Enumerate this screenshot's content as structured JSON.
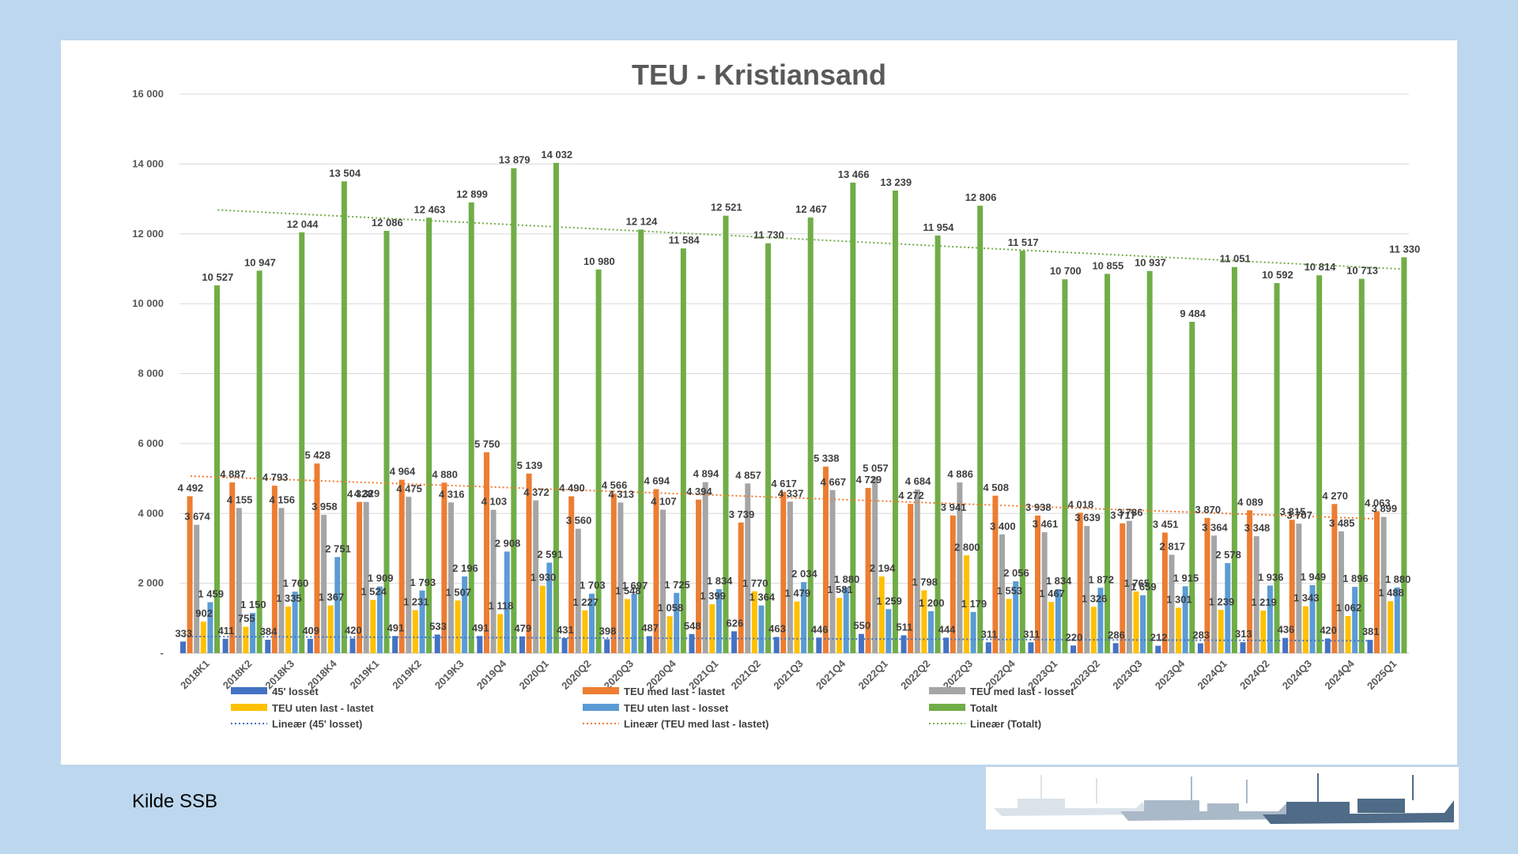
{
  "source_text": "Kilde SSB",
  "chart_data": {
    "type": "bar",
    "title": "TEU - Kristiansand",
    "ylim": [
      0,
      16000
    ],
    "yticks": [
      "-",
      "2 000",
      "4 000",
      "6 000",
      "8 000",
      "10 000",
      "12 000",
      "14 000",
      "16 000"
    ],
    "grid": true,
    "legend_position": "bottom",
    "categories": [
      "2018K1",
      "2018K2",
      "2018K3",
      "2018K4",
      "2019K1",
      "2019K2",
      "2019K3",
      "2019Q4",
      "2020Q1",
      "2020Q2",
      "2020Q3",
      "2020Q4",
      "2021Q1",
      "2021Q2",
      "2021Q3",
      "2021Q4",
      "2022Q1",
      "2022Q2",
      "2022Q3",
      "2022Q4",
      "2023Q1",
      "2023Q2",
      "2023Q3",
      "2023Q4",
      "2024Q1",
      "2024Q2",
      "2024Q3",
      "2024Q4",
      "2025Q1"
    ],
    "series": [
      {
        "name": "45' losset",
        "color": "#4472c4",
        "values": [
          333,
          411,
          384,
          409,
          420,
          491,
          533,
          491,
          479,
          431,
          398,
          487,
          548,
          626,
          463,
          446,
          550,
          511,
          444,
          311,
          311,
          220,
          286,
          212,
          283,
          313,
          436,
          420,
          381
        ]
      },
      {
        "name": "TEU med last - lastet",
        "color": "#ed7d31",
        "values": [
          4492,
          4887,
          4793,
          5428,
          4328,
          4964,
          4880,
          5750,
          5139,
          4490,
          4566,
          4694,
          4394,
          3739,
          4617,
          5338,
          4729,
          4272,
          3941,
          4508,
          3938,
          4018,
          3717,
          3451,
          3870,
          4089,
          3815,
          4270,
          4063
        ]
      },
      {
        "name": "TEU med last - losset",
        "color": "#a5a5a5",
        "values": [
          3674,
          4155,
          4156,
          3958,
          4329,
          4475,
          4316,
          4103,
          4372,
          3560,
          4313,
          4107,
          4894,
          4857,
          4337,
          4667,
          5057,
          4684,
          4886,
          3400,
          3461,
          3639,
          3786,
          2817,
          3364,
          3348,
          3707,
          3485,
          3899
        ]
      },
      {
        "name": "TEU uten last - lastet",
        "color": "#ffc000",
        "values": [
          902,
          755,
          1335,
          1367,
          1524,
          1231,
          1507,
          1118,
          1930,
          1227,
          1548,
          1058,
          1399,
          1770,
          1479,
          1581,
          2194,
          1798,
          2800,
          1553,
          1467,
          1326,
          1765,
          1301,
          1239,
          1219,
          1343,
          1062,
          1488
        ]
      },
      {
        "name": "TEU uten last - losset",
        "color": "#5b9bd5",
        "values": [
          1459,
          1150,
          1760,
          2751,
          1909,
          1793,
          2196,
          2908,
          2591,
          1703,
          1697,
          1725,
          1834,
          1364,
          2034,
          1880,
          1259,
          1200,
          1179,
          2056,
          1834,
          1872,
          1659,
          1915,
          2578,
          1936,
          1949,
          1896,
          1880
        ]
      },
      {
        "name": "Totalt",
        "color": "#70ad47",
        "values": [
          10527,
          10947,
          12044,
          13504,
          12086,
          12463,
          12899,
          13879,
          14032,
          10980,
          12124,
          11584,
          12521,
          11730,
          12467,
          13466,
          13239,
          11954,
          12806,
          11517,
          10700,
          10855,
          10937,
          9484,
          11051,
          10592,
          10814,
          10713,
          11330
        ]
      }
    ],
    "data_labels": [
      {
        "series": "45' losset",
        "labels": [
          "333",
          "411",
          "384",
          "409",
          "420",
          "491",
          "533",
          "491",
          "479",
          "431",
          "398",
          "487",
          "548",
          "626",
          "463",
          "446",
          "550",
          "511",
          "444",
          "311",
          "311",
          "220",
          "286",
          "212",
          "283",
          "313",
          "436",
          "420",
          "381"
        ]
      },
      {
        "series": "TEU med last - lastet",
        "labels": [
          "4 492",
          "4 887",
          "4 793",
          "5 428",
          "4 328",
          "4 964",
          "4 880",
          "5 750",
          "5 139",
          "4 490",
          "4 566",
          "4 694",
          "4 394",
          "3 739",
          "4 617",
          "5 338",
          "4 729",
          "4 272",
          "3 941",
          "4 508",
          "3 938",
          "4 018",
          "3 717",
          "3 451",
          "3 870",
          "4 089",
          "3 815",
          "4 270",
          "4 063"
        ]
      },
      {
        "series": "TEU med last - losset",
        "labels": [
          "3 674",
          "4 155",
          "4 156",
          "3 958",
          "4 329",
          "4 475",
          "4 316",
          "4 103",
          "4 372",
          "3 560",
          "4 313",
          "4 107",
          "4 894",
          "4 857",
          "4 337",
          "4 667",
          "5 057",
          "4 684",
          "4 886",
          "3 400",
          "3 461",
          "3 639",
          "3 786",
          "2 817",
          "3 364",
          "3 348",
          "3 707",
          "3 485",
          "3 899"
        ]
      },
      {
        "series": "TEU uten last - lastet",
        "labels": [
          "902",
          "755",
          "1 335",
          "1 367",
          "1 524",
          "1 231",
          "1 507",
          "1 118",
          "1 930",
          "1 227",
          "1 548",
          "1 058",
          "1 399",
          "1 770",
          "1 479",
          "1 581",
          "2 194",
          "1 798",
          "2 800",
          "1 553",
          "1 467",
          "1 326",
          "1 765",
          "1 301",
          "1 239",
          "1 219",
          "1 343",
          "1 062",
          "1 488"
        ]
      },
      {
        "series": "TEU uten last - losset",
        "labels": [
          "1 459",
          "1 150",
          "1 760",
          "2 751",
          "1 909",
          "1 793",
          "2 196",
          "2 908",
          "2 591",
          "1 703",
          "1 697",
          "1 725",
          "1 834",
          "1 364",
          "2 034",
          "1 880",
          "1 259",
          "1 200",
          "1 179",
          "2 056",
          "1 834",
          "1 872",
          "1 659",
          "1 915",
          "2 578",
          "1 936",
          "1 949",
          "1 896",
          "1 880"
        ]
      },
      {
        "series": "Totalt",
        "labels": [
          "10 527",
          "10 947",
          "12 044",
          "13 504",
          "12 086",
          "12 463",
          "12 899",
          "13 879",
          "14 032",
          "10 980",
          "12 124",
          "11 584",
          "12 521",
          "11 730",
          "12 467",
          "13 466",
          "13 239",
          "11 954",
          "12 806",
          "11 517",
          "10 700",
          "10 855",
          "10 937",
          "9 484",
          "11 051",
          "10 592",
          "10 814",
          "10 713",
          "11 330"
        ]
      }
    ],
    "trendlines": [
      {
        "name": "Lineær (45' losset)",
        "series": "45' losset",
        "color": "#4472c4"
      },
      {
        "name": "Lineær (TEU med last - lastet)",
        "series": "TEU med last - lastet",
        "color": "#ed7d31"
      },
      {
        "name": "Lineær (Totalt)",
        "series": "Totalt",
        "color": "#70ad47"
      }
    ]
  }
}
